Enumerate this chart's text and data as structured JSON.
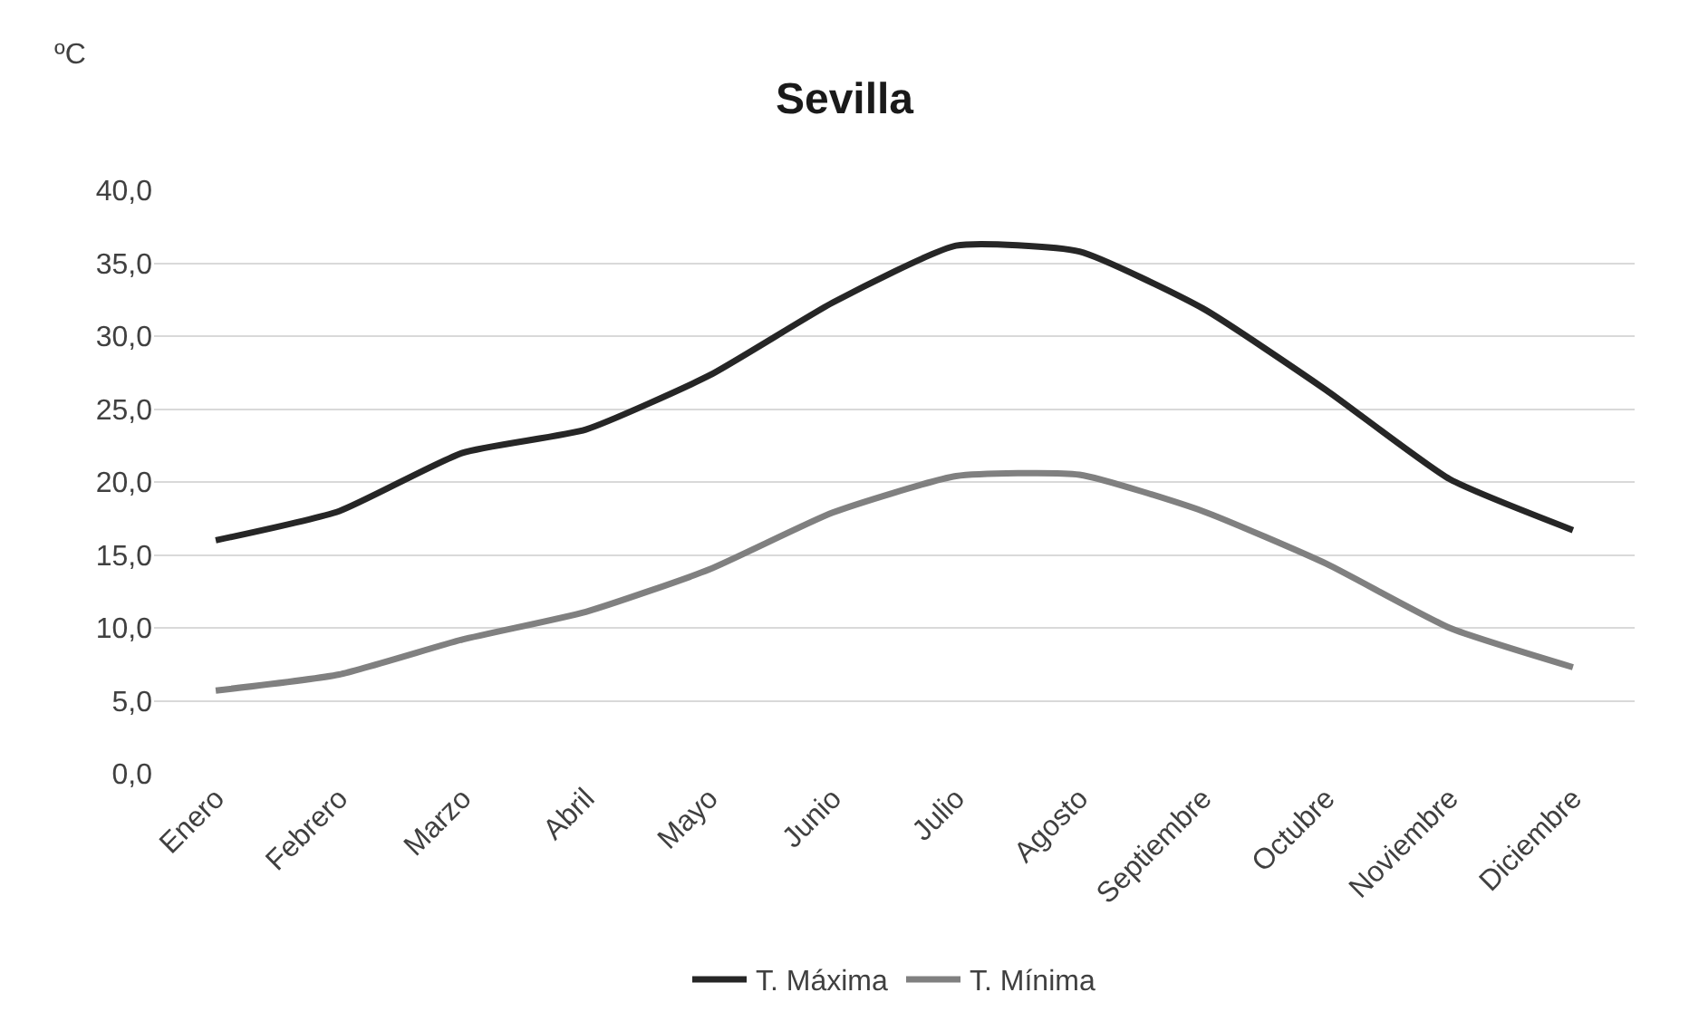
{
  "chart_data": {
    "type": "line",
    "title": "Sevilla",
    "ylabel": "ºC",
    "categories": [
      "Enero",
      "Febrero",
      "Marzo",
      "Abril",
      "Mayo",
      "Junio",
      "Julio",
      "Agosto",
      "Septiembre",
      "Octubre",
      "Noviembre",
      "Diciembre"
    ],
    "series": [
      {
        "name": "T. Máxima",
        "color": "#262626",
        "values": [
          16.0,
          18.0,
          22.0,
          23.6,
          27.3,
          32.3,
          36.2,
          35.8,
          31.9,
          26.3,
          20.2,
          16.7
        ]
      },
      {
        "name": "T. Mínima",
        "color": "#808080",
        "values": [
          5.7,
          6.8,
          9.2,
          11.1,
          14.0,
          17.9,
          20.4,
          20.5,
          18.0,
          14.4,
          10.0,
          7.3
        ]
      }
    ],
    "ylim": [
      0,
      40
    ],
    "yticks": [
      {
        "value": 0,
        "label": "0,0"
      },
      {
        "value": 5,
        "label": "5,0"
      },
      {
        "value": 10,
        "label": "10,0"
      },
      {
        "value": 15,
        "label": "15,0"
      },
      {
        "value": 20,
        "label": "20,0"
      },
      {
        "value": 25,
        "label": "25,0"
      },
      {
        "value": 30,
        "label": "30,0"
      },
      {
        "value": 35,
        "label": "35,0"
      },
      {
        "value": 40,
        "label": "40,0"
      }
    ],
    "grid": "y",
    "legend": "bottom",
    "marker": "none",
    "line_style": "solid"
  }
}
